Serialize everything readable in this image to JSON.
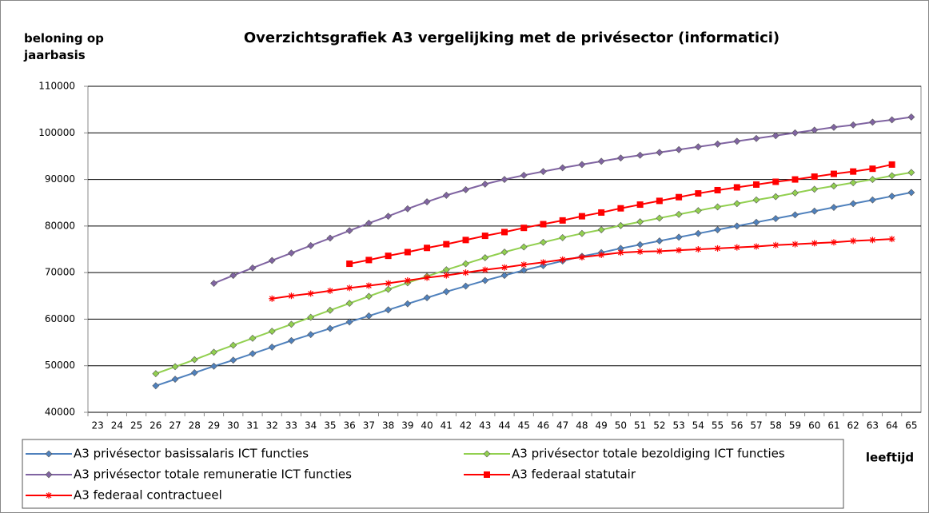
{
  "chart_data": {
    "type": "line",
    "title": "Overzichtsgrafiek A3 vergelijking met de privésector (informatici)",
    "y_label": "beloning op jaarbasis",
    "x_label": "leeftijd",
    "categories": [
      "23",
      "24",
      "25",
      "26",
      "27",
      "28",
      "29",
      "30",
      "31",
      "32",
      "33",
      "34",
      "35",
      "36",
      "37",
      "38",
      "39",
      "40",
      "41",
      "42",
      "43",
      "44",
      "45",
      "46",
      "47",
      "48",
      "49",
      "50",
      "51",
      "52",
      "53",
      "54",
      "55",
      "56",
      "57",
      "58",
      "59",
      "60",
      "61",
      "62",
      "63",
      "64",
      "65"
    ],
    "ylim": [
      40000,
      110000
    ],
    "yticks": [
      40000,
      50000,
      60000,
      70000,
      80000,
      90000,
      100000,
      110000
    ],
    "grid": true,
    "series": [
      {
        "name": "A3 privésector basissalaris ICT functies",
        "color": "#4f81bd",
        "marker": "diamond",
        "values": [
          null,
          null,
          null,
          45700,
          47100,
          48500,
          49900,
          51200,
          52600,
          54000,
          55400,
          56700,
          58000,
          59400,
          60700,
          62000,
          63300,
          64600,
          65900,
          67100,
          68300,
          69400,
          70500,
          71500,
          72500,
          73500,
          74300,
          75200,
          76000,
          76800,
          77600,
          78400,
          79200,
          80000,
          80800,
          81600,
          82400,
          83200,
          84000,
          84800,
          85600,
          86400,
          87200
        ]
      },
      {
        "name": "A3 privésector totale bezoldiging ICT functies",
        "color": "#92d050",
        "marker": "diamond",
        "values": [
          null,
          null,
          null,
          48300,
          49800,
          51300,
          52900,
          54400,
          55900,
          57400,
          58900,
          60400,
          61900,
          63400,
          64900,
          66400,
          67800,
          69200,
          70600,
          71900,
          73200,
          74400,
          75500,
          76500,
          77500,
          78400,
          79200,
          80100,
          80900,
          81700,
          82500,
          83300,
          84100,
          84800,
          85600,
          86300,
          87100,
          87900,
          88600,
          89300,
          90000,
          90800,
          91500
        ]
      },
      {
        "name": "A3 privésector totale remuneratie ICT functies",
        "color": "#8064a2",
        "marker": "diamond",
        "values": [
          null,
          null,
          null,
          null,
          null,
          null,
          67700,
          69400,
          71000,
          72600,
          74200,
          75800,
          77400,
          79000,
          80600,
          82100,
          83700,
          85200,
          86600,
          87800,
          89000,
          90000,
          90900,
          91700,
          92500,
          93200,
          93900,
          94600,
          95200,
          95800,
          96400,
          97000,
          97600,
          98200,
          98800,
          99400,
          100000,
          100600,
          101200,
          101700,
          102300,
          102800,
          103400
        ]
      },
      {
        "name": "A3 federaal statutair",
        "color": "#ff0000",
        "marker": "square",
        "values": [
          null,
          null,
          null,
          null,
          null,
          null,
          null,
          null,
          null,
          null,
          null,
          null,
          null,
          71900,
          72700,
          73600,
          74400,
          75300,
          76100,
          77000,
          77900,
          78700,
          79600,
          80400,
          81200,
          82100,
          82900,
          83800,
          84600,
          85400,
          86200,
          87000,
          87700,
          88300,
          88900,
          89500,
          90000,
          90600,
          91200,
          91700,
          92300,
          93200,
          null
        ]
      },
      {
        "name": "A3 federaal contractueel",
        "color": "#ff0000",
        "marker": "star",
        "values": [
          null,
          null,
          null,
          null,
          null,
          null,
          null,
          null,
          null,
          64400,
          65000,
          65500,
          66100,
          66700,
          67200,
          67700,
          68300,
          68900,
          69400,
          70000,
          70600,
          71100,
          71700,
          72200,
          72800,
          73300,
          73800,
          74300,
          74500,
          74600,
          74800,
          75000,
          75200,
          75400,
          75600,
          75900,
          76100,
          76300,
          76500,
          76800,
          77000,
          77200,
          null
        ]
      }
    ]
  }
}
